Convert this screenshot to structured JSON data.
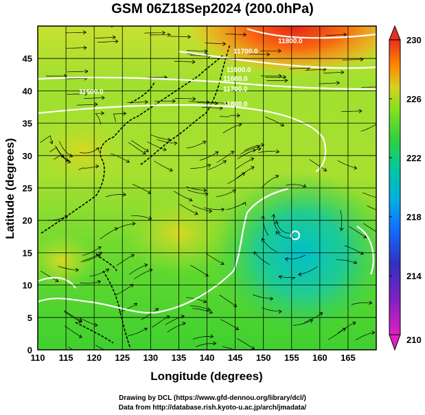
{
  "title": "GSM 06Z18Sep2024 (200.0hPa)",
  "x_axis": {
    "label": "Longitude (degrees)",
    "ticks": [
      110,
      115,
      120,
      125,
      130,
      135,
      140,
      145,
      150,
      155,
      160,
      165
    ],
    "range": [
      110,
      170
    ]
  },
  "y_axis": {
    "label": "Latitude  (degrees)",
    "ticks": [
      0,
      5,
      10,
      15,
      20,
      25,
      30,
      35,
      40,
      45
    ],
    "range": [
      0,
      50
    ]
  },
  "colorbar": {
    "ticks": [
      230,
      226,
      222,
      218,
      214,
      210
    ],
    "range": [
      210,
      230
    ],
    "colors": [
      "#d000d0",
      "#3030c0",
      "#0090ff",
      "#00c8c8",
      "#30d040",
      "#90e020",
      "#e0d020",
      "#ff8000",
      "#e83020"
    ]
  },
  "contour_labels": [
    "11800.0",
    "11700.0",
    "11600.0",
    "11500.0",
    "11600.0",
    "11700.0",
    "11800.0"
  ],
  "credits": {
    "drawing": "Drawing by DCL (https://www.gfd-dennou.org/library/dcl/)",
    "data": "Data from http://database.rish.kyoto-u.ac.jp/arch/jmadata/"
  }
}
